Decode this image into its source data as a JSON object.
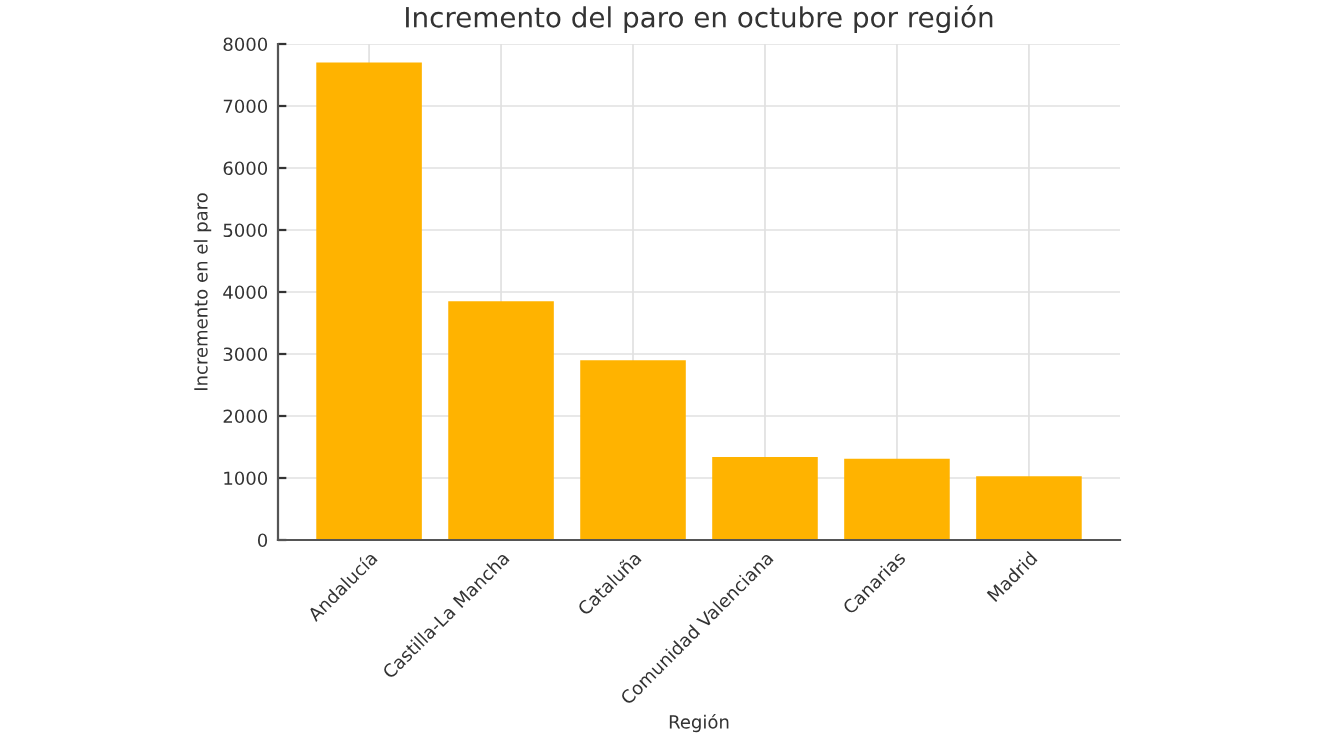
{
  "chart_data": {
    "type": "bar",
    "title": "Incremento del paro en octubre por región",
    "xlabel": "Región",
    "ylabel": "Incremento en el paro",
    "categories": [
      "Andalucía",
      "Castilla-La Mancha",
      "Cataluña",
      "Comunidad Valenciana",
      "Canarias",
      "Madrid"
    ],
    "values": [
      7700,
      3850,
      2900,
      1340,
      1310,
      1030
    ],
    "color": "#ffb300",
    "ylim": [
      0,
      8000
    ],
    "yticks": [
      0,
      1000,
      2000,
      3000,
      4000,
      5000,
      6000,
      7000,
      8000
    ],
    "grid": true,
    "legend": false
  }
}
